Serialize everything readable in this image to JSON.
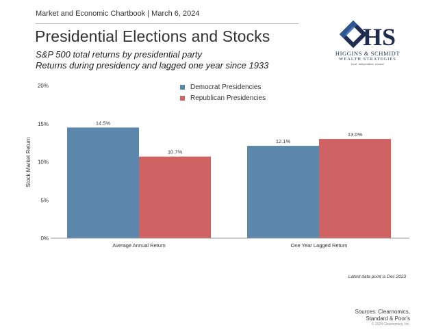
{
  "header": {
    "chartbook_line": "Market and Economic Chartbook | March 6, 2024",
    "title": "Presidential Elections and Stocks",
    "subtitle_line1": "S&P 500 total returns by presidential party",
    "subtitle_line2": "Returns during presidency and lagged one year since 1933"
  },
  "logo": {
    "monogram": "HS",
    "name": "HIGGINS & SCHMIDT",
    "sub": "WEALTH STRATEGIES",
    "tagline": "local. independent. trusted.",
    "color": "#1e2d4f"
  },
  "chart_data": {
    "type": "bar",
    "ylabel": "Stock Market Return",
    "ylim": [
      0,
      20
    ],
    "yticks": [
      "0%",
      "5%",
      "10%",
      "15%",
      "20%"
    ],
    "ytick_values": [
      0,
      5,
      10,
      15,
      20
    ],
    "categories": [
      "Average Annual Return",
      "One Year Lagged Return"
    ],
    "series": [
      {
        "name": "Democrat Presidencies",
        "values": [
          14.5,
          12.1
        ],
        "labels": [
          "14.5%",
          "12.1%"
        ],
        "color": "#5b87ad"
      },
      {
        "name": "Republican Presidencies",
        "values": [
          10.7,
          13.0
        ],
        "labels": [
          "10.7%",
          "13.0%"
        ],
        "color": "#cf6364"
      }
    ],
    "legend_position": "top-center",
    "grid": false
  },
  "footer": {
    "latest_note": "Latest data point is Dec 2023",
    "sources_line1": "Sources: Clearnomics,",
    "sources_line2": "Standard & Poor's",
    "copyright": "© 2024 Clearnomics, Inc."
  }
}
